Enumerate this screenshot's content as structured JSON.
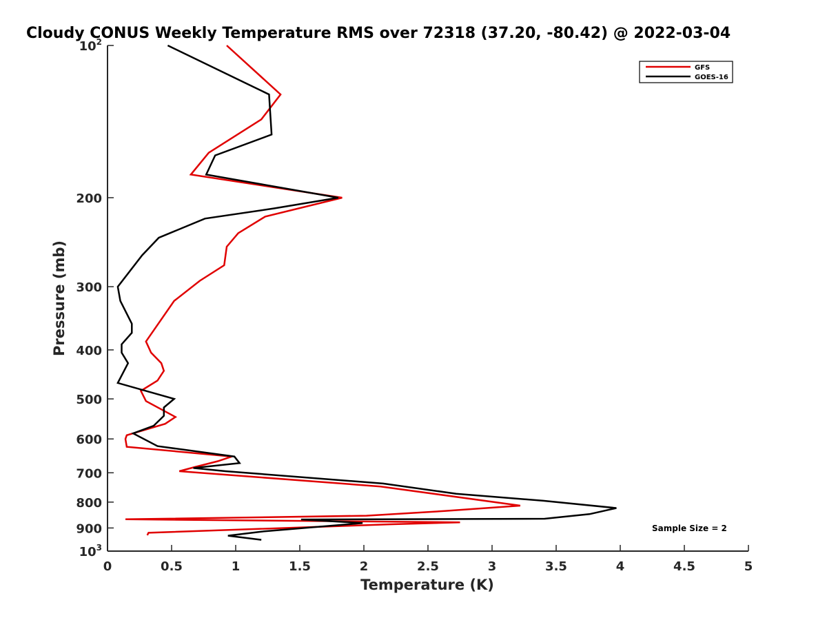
{
  "chart_data": {
    "type": "line",
    "title": "Cloudy CONUS Weekly Temperature RMS over 72318 (37.20, -80.42) @ 2022-03-04",
    "xlabel": "Temperature (K)",
    "ylabel": "Pressure (mb)",
    "xlim": [
      0,
      5
    ],
    "ylim": [
      100,
      1000
    ],
    "y_scale": "log",
    "y_reversed": true,
    "x_ticks": [
      0,
      0.5,
      1,
      1.5,
      2,
      2.5,
      3,
      3.5,
      4,
      4.5,
      5
    ],
    "x_tick_labels": [
      "0",
      "0.5",
      "1",
      "1.5",
      "2",
      "2.5",
      "3",
      "3.5",
      "4",
      "4.5",
      "5"
    ],
    "y_ticks": [
      {
        "value": 100,
        "base": "10",
        "exp": "2"
      },
      {
        "value": 200,
        "label": "200"
      },
      {
        "value": 300,
        "label": "300"
      },
      {
        "value": 400,
        "label": "400"
      },
      {
        "value": 500,
        "label": "500"
      },
      {
        "value": 600,
        "label": "600"
      },
      {
        "value": 700,
        "label": "700"
      },
      {
        "value": 800,
        "label": "800"
      },
      {
        "value": 900,
        "label": "900"
      },
      {
        "value": 1000,
        "base": "10",
        "exp": "3"
      }
    ],
    "legend": {
      "position": "top-right",
      "entries": [
        "GFS",
        "GOES-16"
      ]
    },
    "annotation": "Sample Size = 2",
    "series": [
      {
        "name": "GFS",
        "color": "#e00000",
        "points": [
          [
            0.93,
            100
          ],
          [
            1.35,
            125
          ],
          [
            1.2,
            140
          ],
          [
            0.79,
            163
          ],
          [
            0.65,
            180
          ],
          [
            1.83,
            200
          ],
          [
            1.23,
            218
          ],
          [
            1.02,
            235
          ],
          [
            0.93,
            250
          ],
          [
            0.91,
            272
          ],
          [
            0.72,
            292
          ],
          [
            0.52,
            320
          ],
          [
            0.3,
            385
          ],
          [
            0.34,
            405
          ],
          [
            0.42,
            425
          ],
          [
            0.44,
            440
          ],
          [
            0.39,
            460
          ],
          [
            0.26,
            482
          ],
          [
            0.3,
            505
          ],
          [
            0.53,
            543
          ],
          [
            0.45,
            560
          ],
          [
            0.15,
            590
          ],
          [
            0.14,
            600
          ],
          [
            0.15,
            622
          ],
          [
            0.97,
            650
          ],
          [
            0.86,
            664
          ],
          [
            0.68,
            682
          ],
          [
            0.56,
            695
          ],
          [
            2.13,
            745
          ],
          [
            3.22,
            813
          ],
          [
            2.63,
            833
          ],
          [
            2.02,
            851
          ],
          [
            0.14,
            865
          ],
          [
            2.75,
            877
          ],
          [
            2.2,
            885
          ],
          [
            0.32,
            920
          ],
          [
            0.31,
            930
          ]
        ]
      },
      {
        "name": "GOES-16",
        "color": "#000000",
        "points": [
          [
            0.47,
            100
          ],
          [
            1.26,
            125
          ],
          [
            1.28,
            150
          ],
          [
            0.84,
            165
          ],
          [
            0.77,
            180
          ],
          [
            1.8,
            200
          ],
          [
            1.3,
            210
          ],
          [
            0.76,
            220
          ],
          [
            0.4,
            240
          ],
          [
            0.27,
            260
          ],
          [
            0.08,
            300
          ],
          [
            0.1,
            320
          ],
          [
            0.19,
            355
          ],
          [
            0.19,
            370
          ],
          [
            0.11,
            390
          ],
          [
            0.11,
            405
          ],
          [
            0.16,
            425
          ],
          [
            0.08,
            465
          ],
          [
            0.52,
            500
          ],
          [
            0.44,
            520
          ],
          [
            0.44,
            540
          ],
          [
            0.36,
            565
          ],
          [
            0.2,
            585
          ],
          [
            0.39,
            620
          ],
          [
            0.99,
            650
          ],
          [
            1.03,
            670
          ],
          [
            0.67,
            685
          ],
          [
            0.92,
            695
          ],
          [
            2.15,
            735
          ],
          [
            2.72,
            770
          ],
          [
            3.4,
            795
          ],
          [
            3.97,
            822
          ],
          [
            3.76,
            845
          ],
          [
            3.41,
            863
          ],
          [
            1.51,
            866
          ],
          [
            1.99,
            880
          ],
          [
            1.2,
            915
          ],
          [
            0.94,
            932
          ],
          [
            1.2,
            950
          ]
        ]
      }
    ]
  }
}
